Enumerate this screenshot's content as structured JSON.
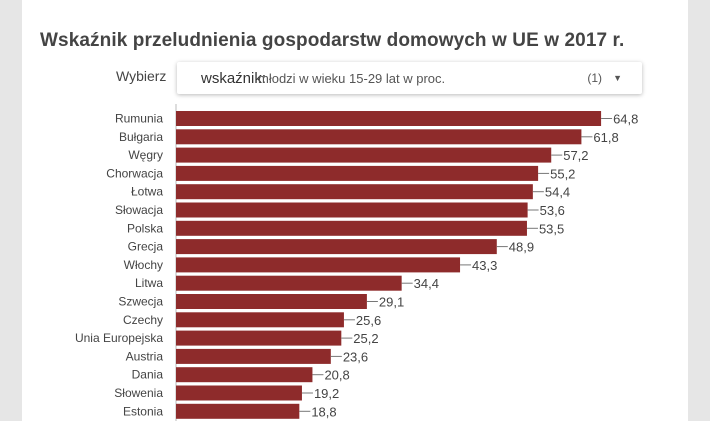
{
  "title": "Wskaźnik przeludnienia gospodarstw domowych w UE w 2017 r.",
  "selector": {
    "label": "Wybierz",
    "key": "wskaźnik:",
    "value": "młodzi w wieku 15-29 lat w proc.",
    "count": "(1)"
  },
  "colors": {
    "bar": "#8e2b2b",
    "text": "#444444"
  },
  "chart_data": {
    "type": "bar",
    "orientation": "horizontal",
    "title": "Wskaźnik przeludnienia gospodarstw domowych w UE w 2017 r.",
    "xlabel": "",
    "ylabel": "",
    "xlim": [
      0,
      66
    ],
    "grid": false,
    "categories": [
      "Rumunia",
      "Bułgaria",
      "Węgry",
      "Chorwacja",
      "Łotwa",
      "Słowacja",
      "Polska",
      "Grecja",
      "Włochy",
      "Litwa",
      "Szwecja",
      "Czechy",
      "Unia Europejska",
      "Austria",
      "Dania",
      "Słowenia",
      "Estonia"
    ],
    "values": [
      64.8,
      61.8,
      57.2,
      55.2,
      54.4,
      53.6,
      53.5,
      48.9,
      43.3,
      34.4,
      29.1,
      25.6,
      25.2,
      23.6,
      20.8,
      19.2,
      18.8
    ],
    "value_labels": [
      "64,8",
      "61,8",
      "57,2",
      "55,2",
      "54,4",
      "53,6",
      "53,5",
      "48,9",
      "43,3",
      "34,4",
      "29,1",
      "25,6",
      "25,2",
      "23,6",
      "20,8",
      "19,2",
      "18,8"
    ]
  }
}
